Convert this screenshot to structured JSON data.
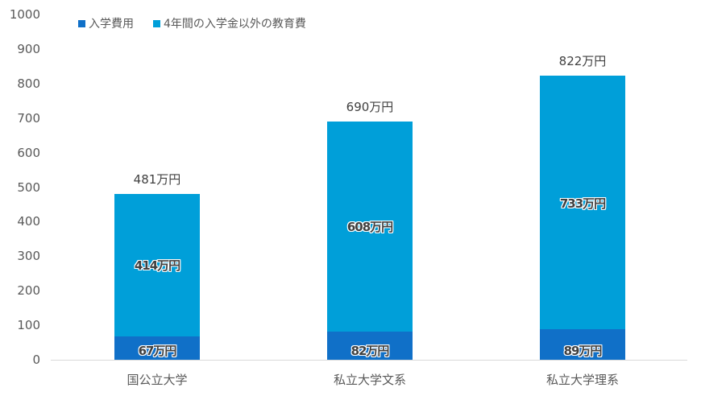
{
  "chart_data": {
    "type": "bar",
    "stacked": true,
    "title": "",
    "xlabel": "",
    "ylabel": "",
    "ylim": [
      0,
      1000
    ],
    "yticks": [
      0,
      100,
      200,
      300,
      400,
      500,
      600,
      700,
      800,
      900,
      1000
    ],
    "grid": false,
    "legend_position": "top",
    "categories": [
      "国公立大学",
      "私立大学文系",
      "私立大学理系"
    ],
    "series": [
      {
        "name": "入学費用",
        "color": "#1070C8",
        "values": [
          67,
          82,
          89
        ],
        "labels": [
          "67万円",
          "82万円",
          "89万円"
        ]
      },
      {
        "name": "4年間の入学金以外の教育費",
        "color": "#009FD9",
        "values": [
          414,
          608,
          733
        ],
        "labels": [
          "414万円",
          "608万円",
          "733万円"
        ]
      }
    ],
    "totals": [
      481,
      690,
      822
    ],
    "total_labels": [
      "481万円",
      "690万円",
      "822万円"
    ]
  },
  "legend": {
    "items": [
      {
        "label": "入学費用",
        "color": "#1070C8"
      },
      {
        "label": "4年間の入学金以外の教育費",
        "color": "#009FD9"
      }
    ]
  },
  "yaxis": {
    "ticks": [
      "1000",
      "900",
      "800",
      "700",
      "600",
      "500",
      "400",
      "300",
      "200",
      "100",
      "0"
    ]
  }
}
